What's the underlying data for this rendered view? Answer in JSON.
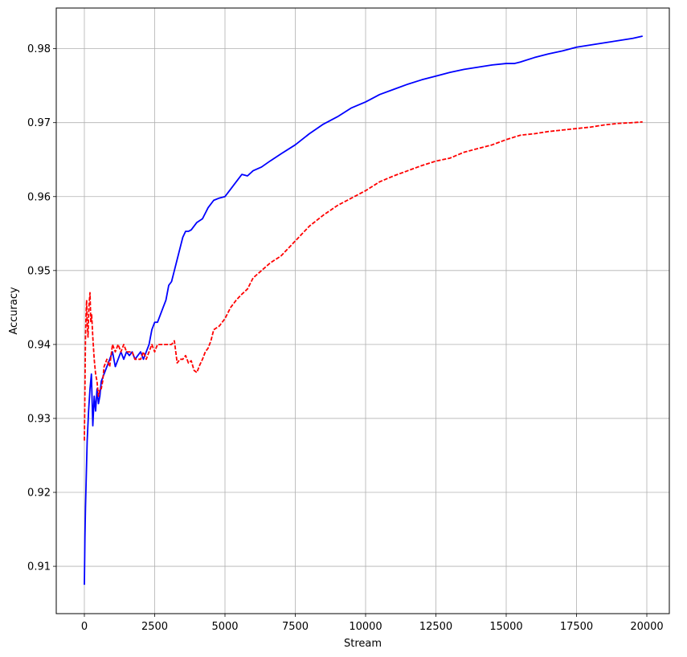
{
  "chart_data": {
    "type": "line",
    "title": "",
    "xlabel": "Stream",
    "ylabel": "Accuracy",
    "xlim": [
      -1000,
      20800
    ],
    "ylim": [
      0.9036,
      0.9855
    ],
    "xticks": [
      0,
      2500,
      5000,
      7500,
      10000,
      12500,
      15000,
      17500,
      20000
    ],
    "xtick_labels": [
      "0",
      "2500",
      "5000",
      "7500",
      "10000",
      "12500",
      "15000",
      "17500",
      "20000"
    ],
    "yticks": [
      0.91,
      0.92,
      0.93,
      0.94,
      0.95,
      0.96,
      0.97,
      0.98
    ],
    "ytick_labels": [
      "0.91",
      "0.92",
      "0.93",
      "0.94",
      "0.95",
      "0.96",
      "0.97",
      "0.98"
    ],
    "grid": true,
    "series": [
      {
        "color": "#0000ff",
        "style": "solid",
        "x": [
          0,
          20,
          40,
          60,
          80,
          100,
          150,
          200,
          250,
          300,
          350,
          400,
          450,
          500,
          550,
          600,
          700,
          800,
          900,
          1000,
          1100,
          1200,
          1300,
          1400,
          1500,
          1600,
          1700,
          1800,
          1900,
          2000,
          2100,
          2200,
          2300,
          2400,
          2500,
          2600,
          2700,
          2800,
          2900,
          3000,
          3100,
          3200,
          3300,
          3400,
          3500,
          3600,
          3700,
          3800,
          3900,
          4000,
          4200,
          4400,
          4600,
          4800,
          5000,
          5200,
          5400,
          5600,
          5800,
          6000,
          6300,
          6600,
          7000,
          7500,
          8000,
          8500,
          9000,
          9500,
          10000,
          10500,
          11000,
          11500,
          12000,
          12500,
          13000,
          13500,
          14000,
          14500,
          15000,
          15300,
          15500,
          16000,
          16500,
          17000,
          17500,
          18000,
          18500,
          19000,
          19500,
          19850
        ],
        "y": [
          0.9075,
          0.914,
          0.918,
          0.921,
          0.924,
          0.927,
          0.931,
          0.934,
          0.936,
          0.929,
          0.933,
          0.931,
          0.934,
          0.932,
          0.933,
          0.935,
          0.936,
          0.937,
          0.938,
          0.939,
          0.937,
          0.938,
          0.939,
          0.938,
          0.939,
          0.9385,
          0.939,
          0.938,
          0.9385,
          0.939,
          0.938,
          0.939,
          0.94,
          0.942,
          0.943,
          0.943,
          0.944,
          0.945,
          0.946,
          0.948,
          0.9485,
          0.95,
          0.9515,
          0.953,
          0.9545,
          0.9553,
          0.9553,
          0.9555,
          0.956,
          0.9565,
          0.957,
          0.9585,
          0.9595,
          0.9598,
          0.96,
          0.961,
          0.962,
          0.963,
          0.9628,
          0.9635,
          0.964,
          0.9648,
          0.9658,
          0.967,
          0.9685,
          0.9698,
          0.9708,
          0.972,
          0.9728,
          0.9738,
          0.9745,
          0.9752,
          0.9758,
          0.9763,
          0.9768,
          0.9772,
          0.9775,
          0.9778,
          0.978,
          0.978,
          0.9782,
          0.9788,
          0.9793,
          0.9797,
          0.9802,
          0.9805,
          0.9808,
          0.9811,
          0.9814,
          0.9817
        ]
      },
      {
        "color": "#ff0000",
        "style": "dashed",
        "x": [
          0,
          20,
          40,
          60,
          80,
          100,
          130,
          160,
          200,
          230,
          260,
          300,
          350,
          400,
          450,
          500,
          550,
          600,
          650,
          700,
          800,
          900,
          1000,
          1100,
          1200,
          1300,
          1400,
          1500,
          1600,
          1700,
          1800,
          1900,
          2000,
          2100,
          2200,
          2300,
          2400,
          2500,
          2600,
          2700,
          2800,
          2900,
          3000,
          3100,
          3200,
          3300,
          3400,
          3500,
          3600,
          3700,
          3800,
          3900,
          4000,
          4100,
          4200,
          4300,
          4400,
          4500,
          4600,
          4800,
          5000,
          5200,
          5400,
          5600,
          5800,
          6000,
          6300,
          6600,
          7000,
          7500,
          8000,
          8500,
          9000,
          9500,
          10000,
          10500,
          11000,
          11500,
          12000,
          12500,
          13000,
          13500,
          14000,
          14500,
          15000,
          15500,
          16000,
          16500,
          17000,
          17500,
          18000,
          18500,
          19000,
          19500,
          19850
        ],
        "y": [
          0.927,
          0.934,
          0.941,
          0.944,
          0.946,
          0.943,
          0.941,
          0.945,
          0.947,
          0.943,
          0.944,
          0.941,
          0.938,
          0.936,
          0.935,
          0.933,
          0.934,
          0.934,
          0.935,
          0.937,
          0.938,
          0.937,
          0.94,
          0.939,
          0.94,
          0.939,
          0.94,
          0.939,
          0.939,
          0.939,
          0.938,
          0.938,
          0.938,
          0.939,
          0.938,
          0.939,
          0.94,
          0.939,
          0.94,
          0.94,
          0.94,
          0.94,
          0.94,
          0.94,
          0.9405,
          0.9375,
          0.938,
          0.938,
          0.9385,
          0.9375,
          0.9378,
          0.9365,
          0.9362,
          0.9372,
          0.938,
          0.939,
          0.9395,
          0.9405,
          0.942,
          0.9425,
          0.9435,
          0.945,
          0.946,
          0.9468,
          0.9475,
          0.949,
          0.95,
          0.951,
          0.952,
          0.954,
          0.956,
          0.9575,
          0.9588,
          0.9598,
          0.9608,
          0.962,
          0.9628,
          0.9635,
          0.9642,
          0.9648,
          0.9652,
          0.966,
          0.9665,
          0.967,
          0.9677,
          0.9683,
          0.9685,
          0.9688,
          0.969,
          0.9692,
          0.9694,
          0.9697,
          0.9699,
          0.97,
          0.9701
        ]
      }
    ]
  }
}
